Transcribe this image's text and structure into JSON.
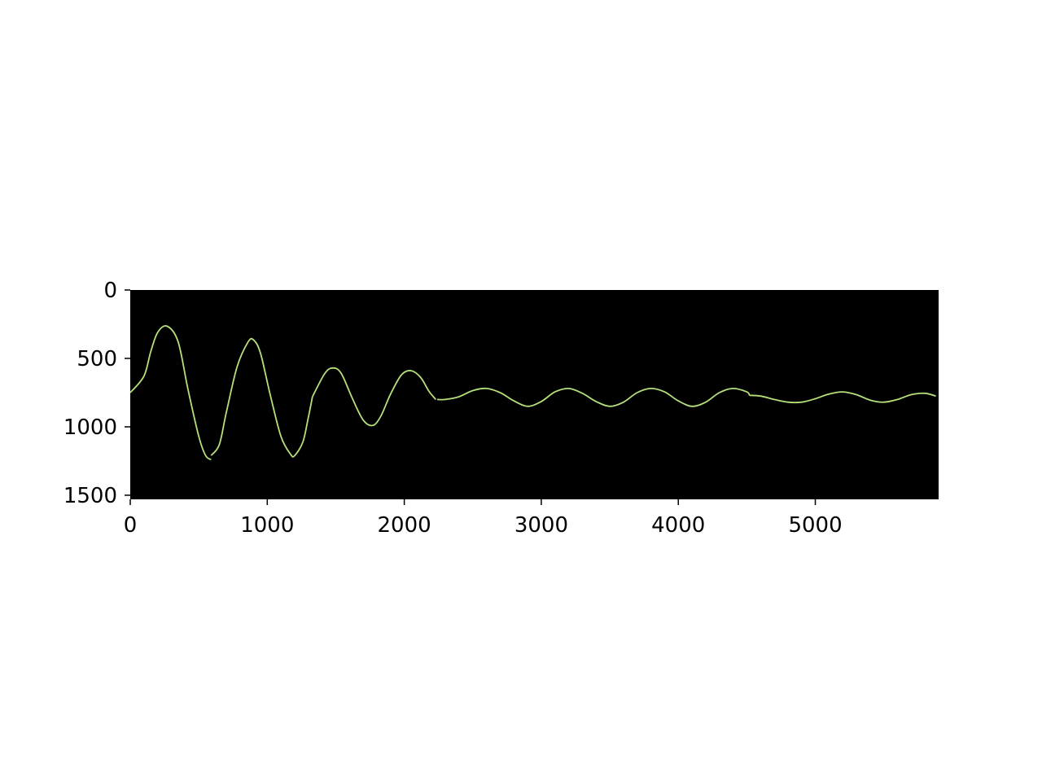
{
  "chart_data": {
    "type": "line",
    "title": "",
    "xlabel": "",
    "ylabel": "",
    "xlim": [
      0,
      5900
    ],
    "ylim": [
      1530,
      0
    ],
    "y_inverted": true,
    "grid": false,
    "legend": "none",
    "x_ticks": [
      0,
      1000,
      2000,
      3000,
      4000,
      5000
    ],
    "y_ticks": [
      0,
      500,
      1000,
      1500
    ],
    "colors": {
      "background": "#000000",
      "line": "#b5e07a",
      "axis": "#000000"
    },
    "series": [
      {
        "name": "",
        "segments": [
          {
            "x": [
              0,
              100,
              150,
              200,
              270,
              350,
              420,
              500,
              550,
              590
            ],
            "y": [
              750,
              630,
              450,
              310,
              265,
              380,
              720,
              1070,
              1210,
              1240
            ]
          },
          {
            "x": [
              590,
              650,
              700,
              780,
              860,
              900,
              950,
              1020,
              1100,
              1170,
              1200,
              1260,
              1300,
              1330
            ],
            "y": [
              1210,
              1130,
              900,
              560,
              380,
              365,
              460,
              760,
              1070,
              1200,
              1210,
              1110,
              930,
              780
            ]
          },
          {
            "x": [
              1330,
              1420,
              1480,
              1540,
              1620,
              1700,
              1770,
              1830,
              1900,
              1980,
              2050,
              2120,
              2180,
              2230
            ],
            "y": [
              780,
              610,
              570,
              610,
              790,
              950,
              990,
              920,
              760,
              620,
              590,
              640,
              740,
              800
            ]
          },
          {
            "x": [
              2240,
              2300,
              2400,
              2500,
              2600,
              2700,
              2800,
              2900,
              3000,
              3100,
              3200,
              3300,
              3400,
              3500,
              3600,
              3700,
              3800,
              3900,
              4000,
              4100,
              4200,
              4300,
              4400,
              4500,
              4520
            ],
            "y": [
              800,
              800,
              780,
              735,
              720,
              750,
              810,
              850,
              815,
              745,
              720,
              755,
              815,
              850,
              820,
              750,
              720,
              745,
              810,
              850,
              820,
              750,
              720,
              745,
              770
            ]
          },
          {
            "x": [
              4520,
              4600,
              4700,
              4800,
              4900,
              5000,
              5100,
              5200,
              5300,
              5400,
              5500,
              5600,
              5700,
              5800,
              5880
            ],
            "y": [
              770,
              775,
              800,
              820,
              820,
              795,
              760,
              745,
              765,
              805,
              820,
              800,
              765,
              755,
              775
            ]
          }
        ]
      }
    ]
  }
}
